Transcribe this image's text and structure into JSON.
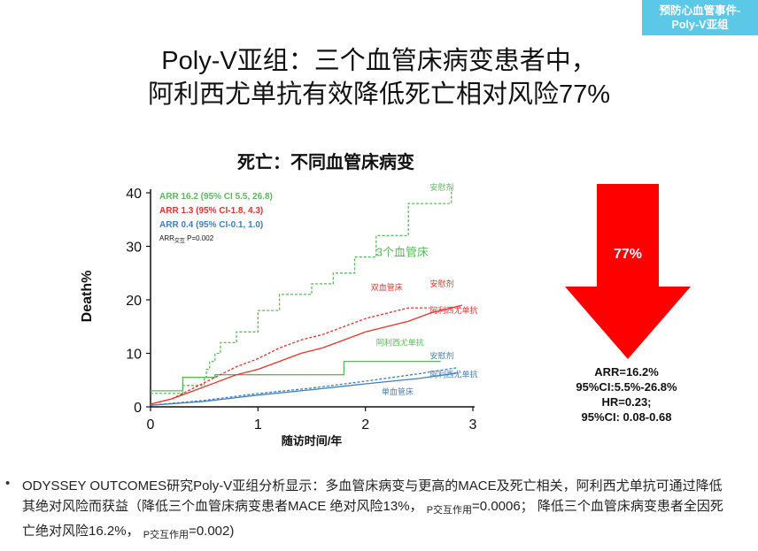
{
  "tag": {
    "line1": "预防心血管事件-",
    "line2": "Poly-V亚组"
  },
  "title": {
    "line1": "Poly-V亚组：三个血管床病变患者中，",
    "line2": "阿利西尤单抗有效降低死亡相对风险77%"
  },
  "arrow": {
    "label": "77%",
    "color": "#ff0000"
  },
  "stats": [
    "ARR=16.2%",
    "95%CI:5.5%-26.8%",
    "HR=0.23;",
    "95%CI: 0.08-0.68"
  ],
  "note": {
    "text1": "ODYSSEY OUTCOMES研究Poly-V亚组分析显示：多血管床病变与更高的MACE及死亡相关，阿利西尤单抗可通过降低其绝对风险而获益（降低三个血管床病变患者MACE 绝对风险13%，",
    "p1_label": "P",
    "p1_sub": "交互作用",
    "p1_value": "=0.0006；",
    "text2": "降低三个血管床病变患者全因死亡绝对风险16.2%，",
    "p2_label": "P",
    "p2_sub": "交互作用",
    "p2_value": "=0.002)"
  },
  "colors": {
    "green": "#5cb85c",
    "red": "#e8302a",
    "blue": "#3e7fc1",
    "tag_bg": "#5bc8e8"
  },
  "chart_data": {
    "type": "line",
    "title": "死亡：不同血管床病变",
    "xlabel": "随访时间/年",
    "ylabel": "Death%",
    "xlim": [
      0,
      3
    ],
    "ylim": [
      0,
      40
    ],
    "xticks": [
      0,
      1,
      2,
      3
    ],
    "yticks": [
      0,
      10,
      20,
      30,
      40
    ],
    "annotations": [
      {
        "text": "ARR 16.2 (95% CI 5.5, 26.8)",
        "color": "#5cb85c"
      },
      {
        "text": "ARR 1.3 (95% CI-1.8, 4.3)",
        "color": "#e8302a"
      },
      {
        "text": "ARR 0.4 (95% CI-0.1, 1.0)",
        "color": "#3e7fc1"
      },
      {
        "text": "ARR",
        "sub": "交互",
        "suffix": " P=0.002",
        "color": "#111111"
      }
    ],
    "series": [
      {
        "name": "3个血管床 安慰剂",
        "color": "#5cb85c",
        "dash": true,
        "x": [
          0,
          0.3,
          0.3,
          0.5,
          0.5,
          0.52,
          0.52,
          0.55,
          0.55,
          0.6,
          0.6,
          0.65,
          0.65,
          0.8,
          0.8,
          1.0,
          1.0,
          1.2,
          1.2,
          1.5,
          1.5,
          1.7,
          1.7,
          1.9,
          1.9,
          2.1,
          2.1,
          2.4,
          2.4,
          2.8,
          2.8
        ],
        "y": [
          2.5,
          2.5,
          4,
          4,
          5.5,
          5.5,
          7,
          7,
          8.5,
          8.5,
          10,
          10,
          12,
          12,
          14,
          14,
          18,
          18,
          21,
          21,
          23,
          23,
          25,
          25,
          28,
          28,
          32,
          32,
          38,
          38,
          41
        ]
      },
      {
        "name": "3个血管床 阿利西尤单抗",
        "color": "#5cb85c",
        "dash": false,
        "x": [
          0,
          0.3,
          0.3,
          0.6,
          0.6,
          1.8,
          1.8,
          2.7
        ],
        "y": [
          3,
          3,
          5.5,
          5.5,
          6,
          6,
          8.5,
          8.5
        ]
      },
      {
        "name": "双血管床 安慰剂",
        "color": "#e8302a",
        "dash": true,
        "x": [
          0,
          0.2,
          0.4,
          0.6,
          0.8,
          1.0,
          1.2,
          1.4,
          1.6,
          1.8,
          2.0,
          2.2,
          2.4,
          2.6
        ],
        "y": [
          0.5,
          1.5,
          3.5,
          5.5,
          7.5,
          9,
          11,
          12.5,
          13.5,
          15,
          16.5,
          17.5,
          18.5,
          18.5
        ]
      },
      {
        "name": "双血管床 阿利西尤单抗",
        "color": "#e8302a",
        "dash": false,
        "x": [
          0,
          0.2,
          0.4,
          0.6,
          0.8,
          1.0,
          1.2,
          1.4,
          1.6,
          1.8,
          2.0,
          2.2,
          2.4,
          2.6,
          2.9
        ],
        "y": [
          0.5,
          1.5,
          3,
          4.5,
          6,
          7,
          8.5,
          10,
          11,
          12.5,
          14,
          15,
          16,
          17.5,
          19
        ]
      },
      {
        "name": "单血管床 安慰剂",
        "color": "#3e7fc1",
        "dash": true,
        "x": [
          0,
          0.5,
          1.0,
          1.5,
          2.0,
          2.5,
          2.85
        ],
        "y": [
          0.3,
          1.2,
          2.5,
          3.5,
          4.8,
          6.2,
          7.3
        ]
      },
      {
        "name": "单血管床 阿利西尤单抗",
        "color": "#3e7fc1",
        "dash": false,
        "x": [
          0,
          0.5,
          1.0,
          1.5,
          2.0,
          2.5,
          2.85
        ],
        "y": [
          0.3,
          1.0,
          2.2,
          3.2,
          4.3,
          5.3,
          6.3
        ]
      }
    ],
    "labels": [
      {
        "text": "安慰剂",
        "color": "#5cb85c",
        "x": 2.6,
        "y": 40.5
      },
      {
        "text": "3个血管床",
        "color": "#5cb85c",
        "x": 2.1,
        "y": 28.2
      },
      {
        "text": "安慰剂",
        "color": "#e8302a",
        "x": 2.6,
        "y": 22.5
      },
      {
        "text": "双血管床",
        "color": "#e8302a",
        "x": 2.05,
        "y": 21.8
      },
      {
        "text": "阿利西尤单抗",
        "color": "#e8302a",
        "x": 2.6,
        "y": 17.5
      },
      {
        "text": "阿利西尤单抗",
        "color": "#5cb85c",
        "x": 2.1,
        "y": 11.5
      },
      {
        "text": "安慰剂",
        "color": "#3e7fc1",
        "x": 2.6,
        "y": 9.0
      },
      {
        "text": "阿利西尤单抗",
        "color": "#3e7fc1",
        "x": 2.6,
        "y": 5.5
      },
      {
        "text": "单血管床",
        "color": "#3e7fc1",
        "x": 2.15,
        "y": 2.3
      }
    ]
  }
}
